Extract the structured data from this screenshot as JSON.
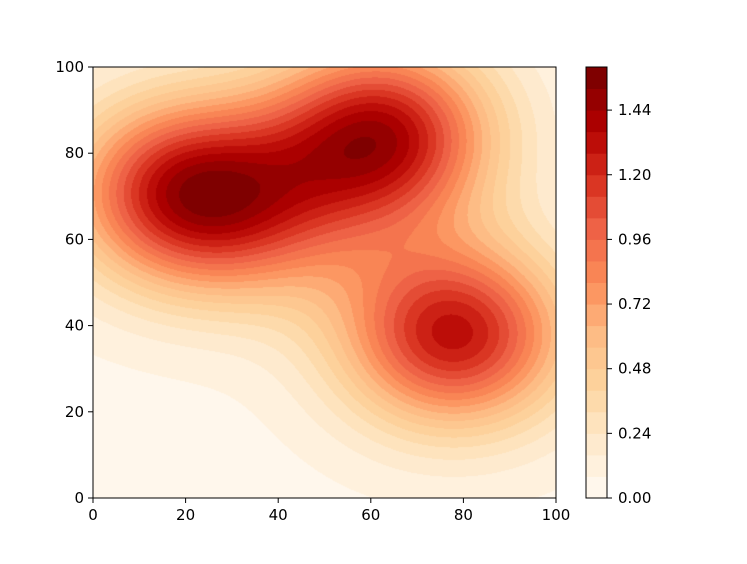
{
  "chart_data": {
    "type": "heatmap",
    "subtype": "filled-contour",
    "title": "",
    "xlabel": "",
    "ylabel": "",
    "xlim": [
      0,
      100
    ],
    "ylim": [
      0,
      100
    ],
    "x_ticks": [
      0,
      20,
      40,
      60,
      80,
      100
    ],
    "y_ticks": [
      0,
      20,
      40,
      60,
      80,
      100
    ],
    "x_tick_labels": [
      "0",
      "20",
      "40",
      "60",
      "80",
      "100"
    ],
    "y_tick_labels": [
      "0",
      "20",
      "40",
      "60",
      "80",
      "100"
    ],
    "grid": false,
    "colormap": "OrRd",
    "colormap_stops": [
      "#fff7ec",
      "#fee8c8",
      "#fdd49e",
      "#fdbb84",
      "#fc8d59",
      "#ef6548",
      "#d7301f",
      "#b30000",
      "#7f0000"
    ],
    "levels": [
      0.0,
      0.08,
      0.16,
      0.24,
      0.32,
      0.4,
      0.48,
      0.56,
      0.64,
      0.72,
      0.8,
      0.88,
      0.96,
      1.04,
      1.12,
      1.2,
      1.28,
      1.36,
      1.44,
      1.52,
      1.6
    ],
    "colorbar": {
      "location": "right",
      "range": [
        0.0,
        1.6
      ],
      "ticks": [
        0.0,
        0.24,
        0.48,
        0.72,
        0.96,
        1.2,
        1.44
      ],
      "tick_labels": [
        "0.00",
        "0.24",
        "0.48",
        "0.72",
        "0.96",
        "1.20",
        "1.44"
      ]
    },
    "peaks": [
      {
        "x": 20,
        "y": 71,
        "value": 1.55
      },
      {
        "x": 62,
        "y": 84,
        "value": 1.5
      },
      {
        "x": 78,
        "y": 38,
        "value": 1.32
      },
      {
        "x": 40,
        "y": 64,
        "value": 1.3
      }
    ],
    "minimum": {
      "x": 38,
      "y": 3,
      "value": 0.05
    }
  }
}
